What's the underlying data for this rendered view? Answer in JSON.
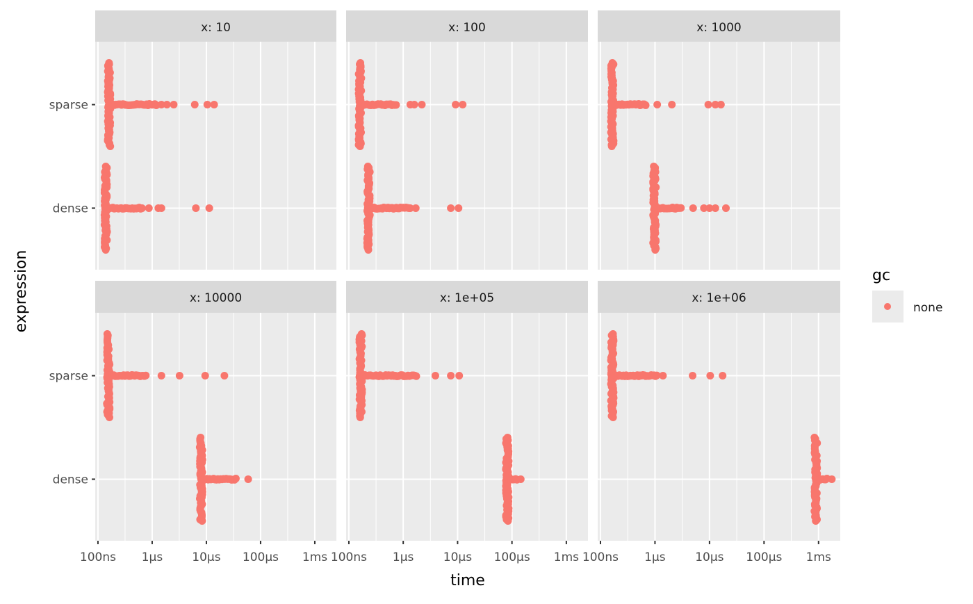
{
  "chart_data": {
    "type": "scatter",
    "subtype": "beeswarm-facets",
    "xlabel": "time",
    "ylabel": "expression",
    "x_scale": "log10",
    "x_unit": "seconds",
    "xlim": [
      8.9e-08,
      0.0025
    ],
    "x_ticks": [
      1e-07,
      1e-06,
      1e-05,
      0.0001,
      0.001
    ],
    "x_tick_labels": [
      "100ns",
      "1µs",
      "10µs",
      "100µs",
      "1ms"
    ],
    "y_categories": [
      "sparse",
      "dense"
    ],
    "grid": true,
    "point_color": "#F8766D",
    "legend": {
      "title": "gc",
      "entries": [
        "none"
      ],
      "placement": "right"
    },
    "facets": [
      {
        "label": "x: 10",
        "series": [
          {
            "expression": "sparse",
            "mode": 1.6e-07,
            "tail_end": 1.2e-06,
            "outliers": [
              1.48e-06,
              1.87e-06,
              2.5e-06,
              6.1e-06,
              1.04e-05,
              1.39e-05
            ]
          },
          {
            "expression": "dense",
            "mode": 1.4e-07,
            "tail_end": 6.6e-07,
            "outliers": [
              8.7e-07,
              1.3e-06,
              1.48e-06,
              6.4e-06,
              1.13e-05
            ]
          }
        ]
      },
      {
        "label": "x: 100",
        "series": [
          {
            "expression": "sparse",
            "mode": 1.6e-07,
            "tail_end": 7.5e-07,
            "outliers": [
              1.35e-06,
              1.6e-06,
              2.2e-06,
              9.2e-06,
              1.24e-05
            ]
          },
          {
            "expression": "dense",
            "mode": 2.3e-07,
            "tail_end": 1.35e-06,
            "outliers": [
              1.7e-06,
              7.5e-06,
              1.04e-05
            ]
          }
        ]
      },
      {
        "label": "x: 1000",
        "series": [
          {
            "expression": "sparse",
            "mode": 1.65e-07,
            "tail_end": 7e-07,
            "outliers": [
              1.1e-06,
              2.04e-06,
              9.5e-06,
              1.28e-05,
              1.62e-05
            ]
          },
          {
            "expression": "dense",
            "mode": 9.8e-07,
            "tail_end": 3e-06,
            "outliers": [
              5e-06,
              7.9e-06,
              1e-05,
              1.28e-05,
              2e-05
            ]
          }
        ]
      },
      {
        "label": "x: 10000",
        "series": [
          {
            "expression": "sparse",
            "mode": 1.55e-07,
            "tail_end": 7.7e-07,
            "outliers": [
              1.48e-06,
              3.2e-06,
              9.5e-06,
              2.15e-05
            ]
          },
          {
            "expression": "dense",
            "mode": 8e-06,
            "tail_end": 3.6e-05,
            "outliers": [
              5.9e-05
            ]
          }
        ]
      },
      {
        "label": "x: 1e+05",
        "series": [
          {
            "expression": "sparse",
            "mode": 1.65e-07,
            "tail_end": 1.8e-06,
            "outliers": [
              3.9e-06,
              7.5e-06,
              1.07e-05
            ]
          },
          {
            "expression": "dense",
            "mode": 8.2e-05,
            "tail_end": 0.00013,
            "outliers": [
              0.000145
            ]
          }
        ]
      },
      {
        "label": "x: 1e+06",
        "series": [
          {
            "expression": "sparse",
            "mode": 1.65e-07,
            "tail_end": 1.1e-06,
            "outliers": [
              1.4e-06,
              4.9e-06,
              1.03e-05,
              1.74e-05
            ]
          },
          {
            "expression": "dense",
            "mode": 0.00089,
            "tail_end": 0.0015,
            "outliers": [
              0.00175
            ]
          }
        ]
      }
    ]
  }
}
